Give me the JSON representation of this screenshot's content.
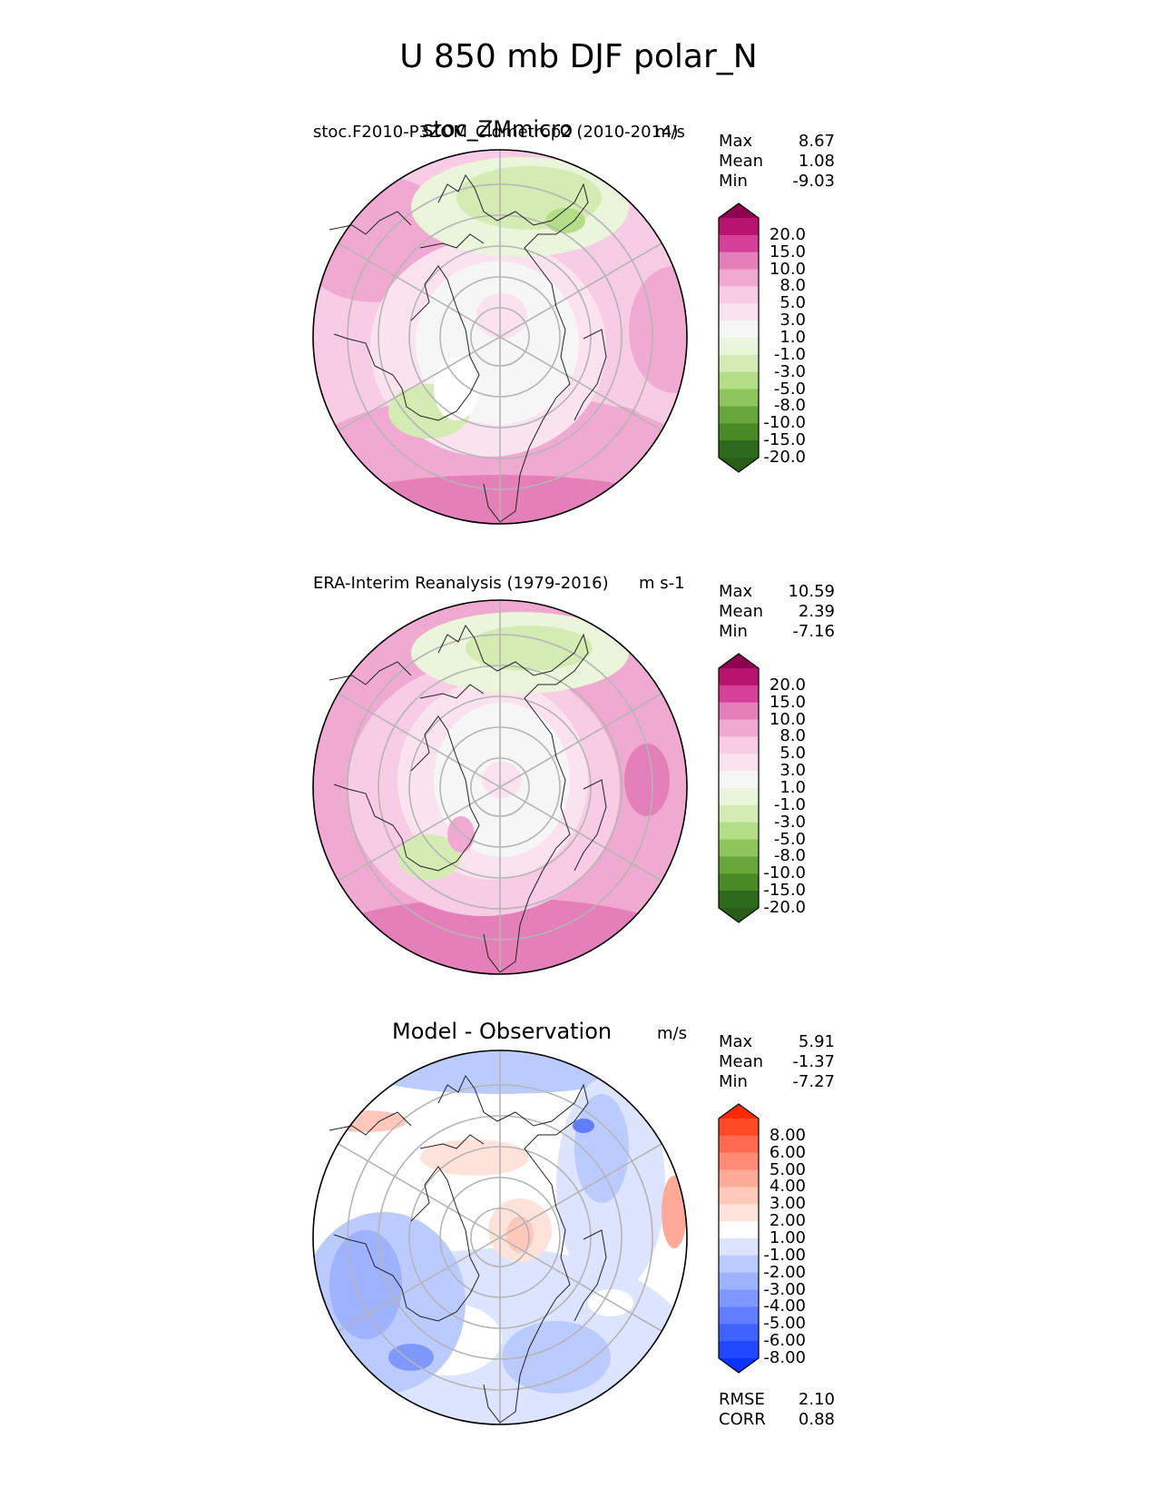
{
  "figure": {
    "title": "U 850 mb DJF polar_N"
  },
  "panels": [
    {
      "id": "test",
      "title": "stoc_ZMmicro",
      "subtitle": "stoc.F2010-P3ZOM_Cldmetrop2 (2010-2014)",
      "units": "m/s",
      "stats": [
        {
          "label": "Max",
          "value": "8.67"
        },
        {
          "label": "Mean",
          "value": "1.08"
        },
        {
          "label": "Min",
          "value": "-9.03"
        }
      ],
      "colorbar": {
        "palette": "green-pink",
        "labels": [
          "20.0",
          "15.0",
          "10.0",
          "8.0",
          "5.0",
          "3.0",
          "1.0",
          "-1.0",
          "-3.0",
          "-5.0",
          "-8.0",
          "-10.0",
          "-15.0",
          "-20.0"
        ],
        "colors": [
          "#8e0152",
          "#b8146f",
          "#d6409a",
          "#e47fb9",
          "#f0aad2",
          "#f8cce4",
          "#fae3ef",
          "#f6f6f6",
          "#eaf5dc",
          "#d4ecb4",
          "#b3de87",
          "#8cc65a",
          "#68a83a",
          "#4a8b28",
          "#2d6a1b",
          "#2a5d18"
        ]
      }
    },
    {
      "id": "reference",
      "title": "",
      "subtitle": "ERA-Interim Reanalysis (1979-2016)",
      "units": "m s-1",
      "stats": [
        {
          "label": "Max",
          "value": "10.59"
        },
        {
          "label": "Mean",
          "value": "2.39"
        },
        {
          "label": "Min",
          "value": "-7.16"
        }
      ],
      "colorbar": {
        "palette": "green-pink",
        "labels": [
          "20.0",
          "15.0",
          "10.0",
          "8.0",
          "5.0",
          "3.0",
          "1.0",
          "-1.0",
          "-3.0",
          "-5.0",
          "-8.0",
          "-10.0",
          "-15.0",
          "-20.0"
        ],
        "colors": [
          "#8e0152",
          "#b8146f",
          "#d6409a",
          "#e47fb9",
          "#f0aad2",
          "#f8cce4",
          "#fae3ef",
          "#f6f6f6",
          "#eaf5dc",
          "#d4ecb4",
          "#b3de87",
          "#8cc65a",
          "#68a83a",
          "#4a8b28",
          "#2d6a1b",
          "#2a5d18"
        ]
      }
    },
    {
      "id": "diff",
      "title": "Model - Observation",
      "subtitle": "",
      "units": "m/s",
      "stats": [
        {
          "label": "Max",
          "value": "5.91"
        },
        {
          "label": "Mean",
          "value": "-1.37"
        },
        {
          "label": "Min",
          "value": "-7.27"
        }
      ],
      "extra_stats": [
        {
          "label": "RMSE",
          "value": "2.10"
        },
        {
          "label": "CORR",
          "value": "0.88"
        }
      ],
      "colorbar": {
        "palette": "blue-red",
        "labels": [
          "8.00",
          "6.00",
          "5.00",
          "4.00",
          "3.00",
          "2.00",
          "1.00",
          "-1.00",
          "-2.00",
          "-3.00",
          "-4.00",
          "-5.00",
          "-6.00",
          "-8.00"
        ],
        "colors": [
          "#ff2a00",
          "#ff4a28",
          "#ff6a50",
          "#ff8a74",
          "#ffaa98",
          "#ffc8ba",
          "#ffe2da",
          "#ffffff",
          "#dce4ff",
          "#bccbff",
          "#9eb2ff",
          "#7f98ff",
          "#607eff",
          "#4063ff",
          "#2147ff",
          "#0a33ff"
        ]
      }
    }
  ]
}
